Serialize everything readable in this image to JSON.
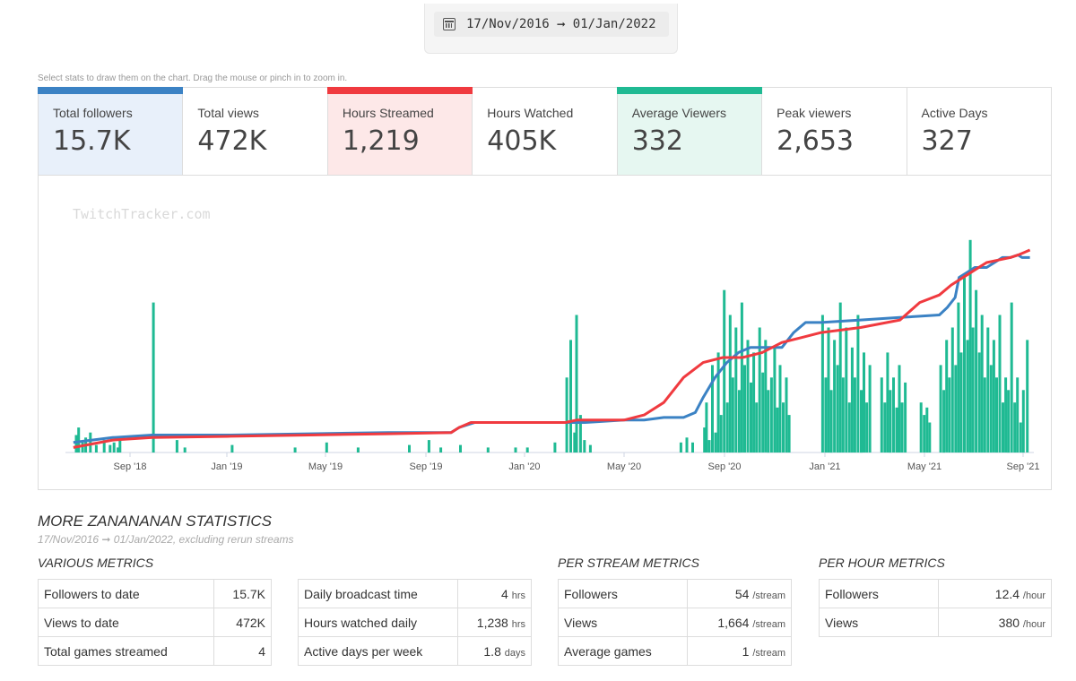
{
  "date_range": {
    "start": "17/Nov/2016",
    "arrow": "➞",
    "end": "01/Jan/2022"
  },
  "hint": "Select stats to draw them on the chart. Drag the mouse or pinch in to zoom in.",
  "stats": [
    {
      "label": "Total followers",
      "value": "15.7K",
      "selected": true,
      "bar_color": "#3b82c4",
      "bg": "#e8f0fa"
    },
    {
      "label": "Total views",
      "value": "472K",
      "selected": false,
      "bar_color": "",
      "bg": "#ffffff"
    },
    {
      "label": "Hours Streamed",
      "value": "1,219",
      "selected": true,
      "bar_color": "#f03a3f",
      "bg": "#fde8e8"
    },
    {
      "label": "Hours Watched",
      "value": "405K",
      "selected": false,
      "bar_color": "",
      "bg": "#ffffff"
    },
    {
      "label": "Average Viewers",
      "value": "332",
      "selected": true,
      "bar_color": "#1fba93",
      "bg": "#e6f7f1"
    },
    {
      "label": "Peak viewers",
      "value": "2,653",
      "selected": false,
      "bar_color": "",
      "bg": "#ffffff"
    },
    {
      "label": "Active Days",
      "value": "327",
      "selected": false,
      "bar_color": "",
      "bg": "#ffffff"
    }
  ],
  "chart_data": {
    "type": "bar",
    "watermark": "TwitchTracker.com",
    "x_ticks": [
      "Sep '18",
      "Jan '19",
      "May '19",
      "Sep '19",
      "Jan '20",
      "May '20",
      "Sep '20",
      "Jan '21",
      "May '21",
      "Sep '21"
    ],
    "grid": false,
    "series": [
      {
        "kind": "bar",
        "color": "#1fba93",
        "bars": [
          [
            0.04,
            0.07
          ],
          [
            0.1,
            0.1
          ],
          [
            0.2,
            0.04
          ],
          [
            0.28,
            0.06
          ],
          [
            0.4,
            0.08
          ],
          [
            0.55,
            0.03
          ],
          [
            0.75,
            0.05
          ],
          [
            0.9,
            0.03
          ],
          [
            1.0,
            0.04
          ],
          [
            1.1,
            0.02
          ],
          [
            1.15,
            0.06
          ],
          [
            2.0,
            0.6
          ],
          [
            2.6,
            0.05
          ],
          [
            2.8,
            0.02
          ],
          [
            4.0,
            0.03
          ],
          [
            5.6,
            0.02
          ],
          [
            6.4,
            0.04
          ],
          [
            7.2,
            0.02
          ],
          [
            8.5,
            0.03
          ],
          [
            9.0,
            0.05
          ],
          [
            9.3,
            0.02
          ],
          [
            9.8,
            0.03
          ],
          [
            10.5,
            0.02
          ],
          [
            11.2,
            0.02
          ],
          [
            11.5,
            0.02
          ],
          [
            12.2,
            0.04
          ],
          [
            12.5,
            0.3
          ],
          [
            12.6,
            0.45
          ],
          [
            12.7,
            0.08
          ],
          [
            12.75,
            0.55
          ],
          [
            12.85,
            0.15
          ],
          [
            12.95,
            0.05
          ],
          [
            13.1,
            0.03
          ],
          [
            15.4,
            0.04
          ],
          [
            15.55,
            0.06
          ],
          [
            15.7,
            0.04
          ],
          [
            16.0,
            0.1
          ],
          [
            16.05,
            0.2
          ],
          [
            16.12,
            0.05
          ],
          [
            16.2,
            0.35
          ],
          [
            16.28,
            0.08
          ],
          [
            16.35,
            0.4
          ],
          [
            16.42,
            0.15
          ],
          [
            16.5,
            0.65
          ],
          [
            16.58,
            0.2
          ],
          [
            16.65,
            0.55
          ],
          [
            16.72,
            0.3
          ],
          [
            16.8,
            0.5
          ],
          [
            16.88,
            0.25
          ],
          [
            16.95,
            0.6
          ],
          [
            17.02,
            0.35
          ],
          [
            17.1,
            0.45
          ],
          [
            17.18,
            0.28
          ],
          [
            17.25,
            0.4
          ],
          [
            17.32,
            0.2
          ],
          [
            17.4,
            0.5
          ],
          [
            17.48,
            0.32
          ],
          [
            17.55,
            0.45
          ],
          [
            17.62,
            0.25
          ],
          [
            17.7,
            0.3
          ],
          [
            17.78,
            0.42
          ],
          [
            17.85,
            0.18
          ],
          [
            17.92,
            0.35
          ],
          [
            18.0,
            0.2
          ],
          [
            18.08,
            0.3
          ],
          [
            18.15,
            0.15
          ],
          [
            19.0,
            0.55
          ],
          [
            19.08,
            0.3
          ],
          [
            19.15,
            0.5
          ],
          [
            19.22,
            0.25
          ],
          [
            19.3,
            0.45
          ],
          [
            19.38,
            0.35
          ],
          [
            19.45,
            0.6
          ],
          [
            19.52,
            0.3
          ],
          [
            19.6,
            0.5
          ],
          [
            19.68,
            0.2
          ],
          [
            19.75,
            0.42
          ],
          [
            19.82,
            0.3
          ],
          [
            19.9,
            0.55
          ],
          [
            19.98,
            0.25
          ],
          [
            20.05,
            0.4
          ],
          [
            20.12,
            0.2
          ],
          [
            20.2,
            0.35
          ],
          [
            20.5,
            0.3
          ],
          [
            20.58,
            0.2
          ],
          [
            20.65,
            0.4
          ],
          [
            20.72,
            0.25
          ],
          [
            20.8,
            0.3
          ],
          [
            20.88,
            0.18
          ],
          [
            20.95,
            0.35
          ],
          [
            21.02,
            0.2
          ],
          [
            21.1,
            0.28
          ],
          [
            21.5,
            0.2
          ],
          [
            21.58,
            0.15
          ],
          [
            21.65,
            0.18
          ],
          [
            21.72,
            0.12
          ],
          [
            22.0,
            0.35
          ],
          [
            22.08,
            0.25
          ],
          [
            22.15,
            0.45
          ],
          [
            22.22,
            0.3
          ],
          [
            22.3,
            0.5
          ],
          [
            22.38,
            0.35
          ],
          [
            22.45,
            0.6
          ],
          [
            22.52,
            0.4
          ],
          [
            22.6,
            0.7
          ],
          [
            22.68,
            0.45
          ],
          [
            22.75,
            0.85
          ],
          [
            22.82,
            0.5
          ],
          [
            22.9,
            0.65
          ],
          [
            22.98,
            0.4
          ],
          [
            23.05,
            0.55
          ],
          [
            23.12,
            0.3
          ],
          [
            23.2,
            0.5
          ],
          [
            23.28,
            0.35
          ],
          [
            23.35,
            0.45
          ],
          [
            23.42,
            0.3
          ],
          [
            23.5,
            0.55
          ],
          [
            23.58,
            0.2
          ],
          [
            23.65,
            0.3
          ],
          [
            23.72,
            0.25
          ],
          [
            23.8,
            0.6
          ],
          [
            23.88,
            0.2
          ],
          [
            23.95,
            0.3
          ],
          [
            24.03,
            0.12
          ],
          [
            24.1,
            0.25
          ],
          [
            24.2,
            0.45
          ]
        ]
      },
      {
        "kind": "line",
        "name": "Total followers",
        "color": "#3b82c4",
        "points": [
          [
            0,
            0.04
          ],
          [
            1,
            0.06
          ],
          [
            2,
            0.07
          ],
          [
            4,
            0.07
          ],
          [
            6,
            0.075
          ],
          [
            8,
            0.08
          ],
          [
            9.6,
            0.08
          ],
          [
            9.8,
            0.1
          ],
          [
            10.2,
            0.12
          ],
          [
            11,
            0.12
          ],
          [
            13,
            0.12
          ],
          [
            14,
            0.13
          ],
          [
            14.5,
            0.13
          ],
          [
            15,
            0.14
          ],
          [
            15.5,
            0.14
          ],
          [
            15.8,
            0.16
          ],
          [
            16,
            0.22
          ],
          [
            16.3,
            0.3
          ],
          [
            16.6,
            0.36
          ],
          [
            16.9,
            0.4
          ],
          [
            17.2,
            0.42
          ],
          [
            17.6,
            0.42
          ],
          [
            18,
            0.42
          ],
          [
            18.3,
            0.48
          ],
          [
            18.6,
            0.52
          ],
          [
            19,
            0.52
          ],
          [
            20,
            0.53
          ],
          [
            21,
            0.54
          ],
          [
            22,
            0.55
          ],
          [
            22.2,
            0.58
          ],
          [
            22.4,
            0.62
          ],
          [
            22.5,
            0.7
          ],
          [
            22.7,
            0.72
          ],
          [
            22.9,
            0.74
          ],
          [
            23.2,
            0.74
          ],
          [
            23.4,
            0.76
          ],
          [
            23.6,
            0.78
          ],
          [
            23.8,
            0.78
          ],
          [
            24,
            0.79
          ],
          [
            24.1,
            0.78
          ],
          [
            24.3,
            0.78
          ]
        ]
      },
      {
        "kind": "line",
        "name": "Hours Streamed",
        "color": "#f03a3f",
        "points": [
          [
            0,
            0.02
          ],
          [
            1,
            0.05
          ],
          [
            2,
            0.06
          ],
          [
            4,
            0.065
          ],
          [
            6,
            0.07
          ],
          [
            8,
            0.075
          ],
          [
            9.6,
            0.08
          ],
          [
            9.8,
            0.1
          ],
          [
            10.1,
            0.12
          ],
          [
            11,
            0.12
          ],
          [
            12.5,
            0.12
          ],
          [
            12.8,
            0.13
          ],
          [
            13.5,
            0.13
          ],
          [
            14,
            0.13
          ],
          [
            14.5,
            0.15
          ],
          [
            15,
            0.2
          ],
          [
            15.5,
            0.3
          ],
          [
            16,
            0.36
          ],
          [
            16.5,
            0.38
          ],
          [
            17,
            0.38
          ],
          [
            17.5,
            0.4
          ],
          [
            18,
            0.44
          ],
          [
            18.5,
            0.46
          ],
          [
            19,
            0.48
          ],
          [
            20,
            0.5
          ],
          [
            21,
            0.53
          ],
          [
            21.5,
            0.6
          ],
          [
            22,
            0.63
          ],
          [
            22.3,
            0.67
          ],
          [
            22.6,
            0.7
          ],
          [
            22.9,
            0.73
          ],
          [
            23.2,
            0.76
          ],
          [
            23.5,
            0.77
          ],
          [
            23.8,
            0.78
          ],
          [
            24,
            0.79
          ],
          [
            24.3,
            0.81
          ]
        ]
      }
    ]
  },
  "more": {
    "title": "MORE ZANANANAN STATISTICS",
    "subtitle": "17/Nov/2016 ➞ 01/Jan/2022, excluding rerun streams",
    "various_title": "VARIOUS METRICS",
    "per_stream_title": "PER STREAM METRICS",
    "per_hour_title": "PER HOUR METRICS",
    "various_a": [
      {
        "label": "Followers to date",
        "value": "15.7K",
        "unit": ""
      },
      {
        "label": "Views to date",
        "value": "472K",
        "unit": ""
      },
      {
        "label": "Total games streamed",
        "value": "4",
        "unit": ""
      }
    ],
    "various_b": [
      {
        "label": "Daily broadcast time",
        "value": "4",
        "unit": "hrs"
      },
      {
        "label": "Hours watched daily",
        "value": "1,238",
        "unit": "hrs"
      },
      {
        "label": "Active days per week",
        "value": "1.8",
        "unit": "days"
      }
    ],
    "per_stream": [
      {
        "label": "Followers",
        "value": "54",
        "unit": "/stream"
      },
      {
        "label": "Views",
        "value": "1,664",
        "unit": "/stream"
      },
      {
        "label": "Average games",
        "value": "1",
        "unit": "/stream"
      }
    ],
    "per_hour": [
      {
        "label": "Followers",
        "value": "12.4",
        "unit": "/hour"
      },
      {
        "label": "Views",
        "value": "380",
        "unit": "/hour"
      }
    ]
  }
}
